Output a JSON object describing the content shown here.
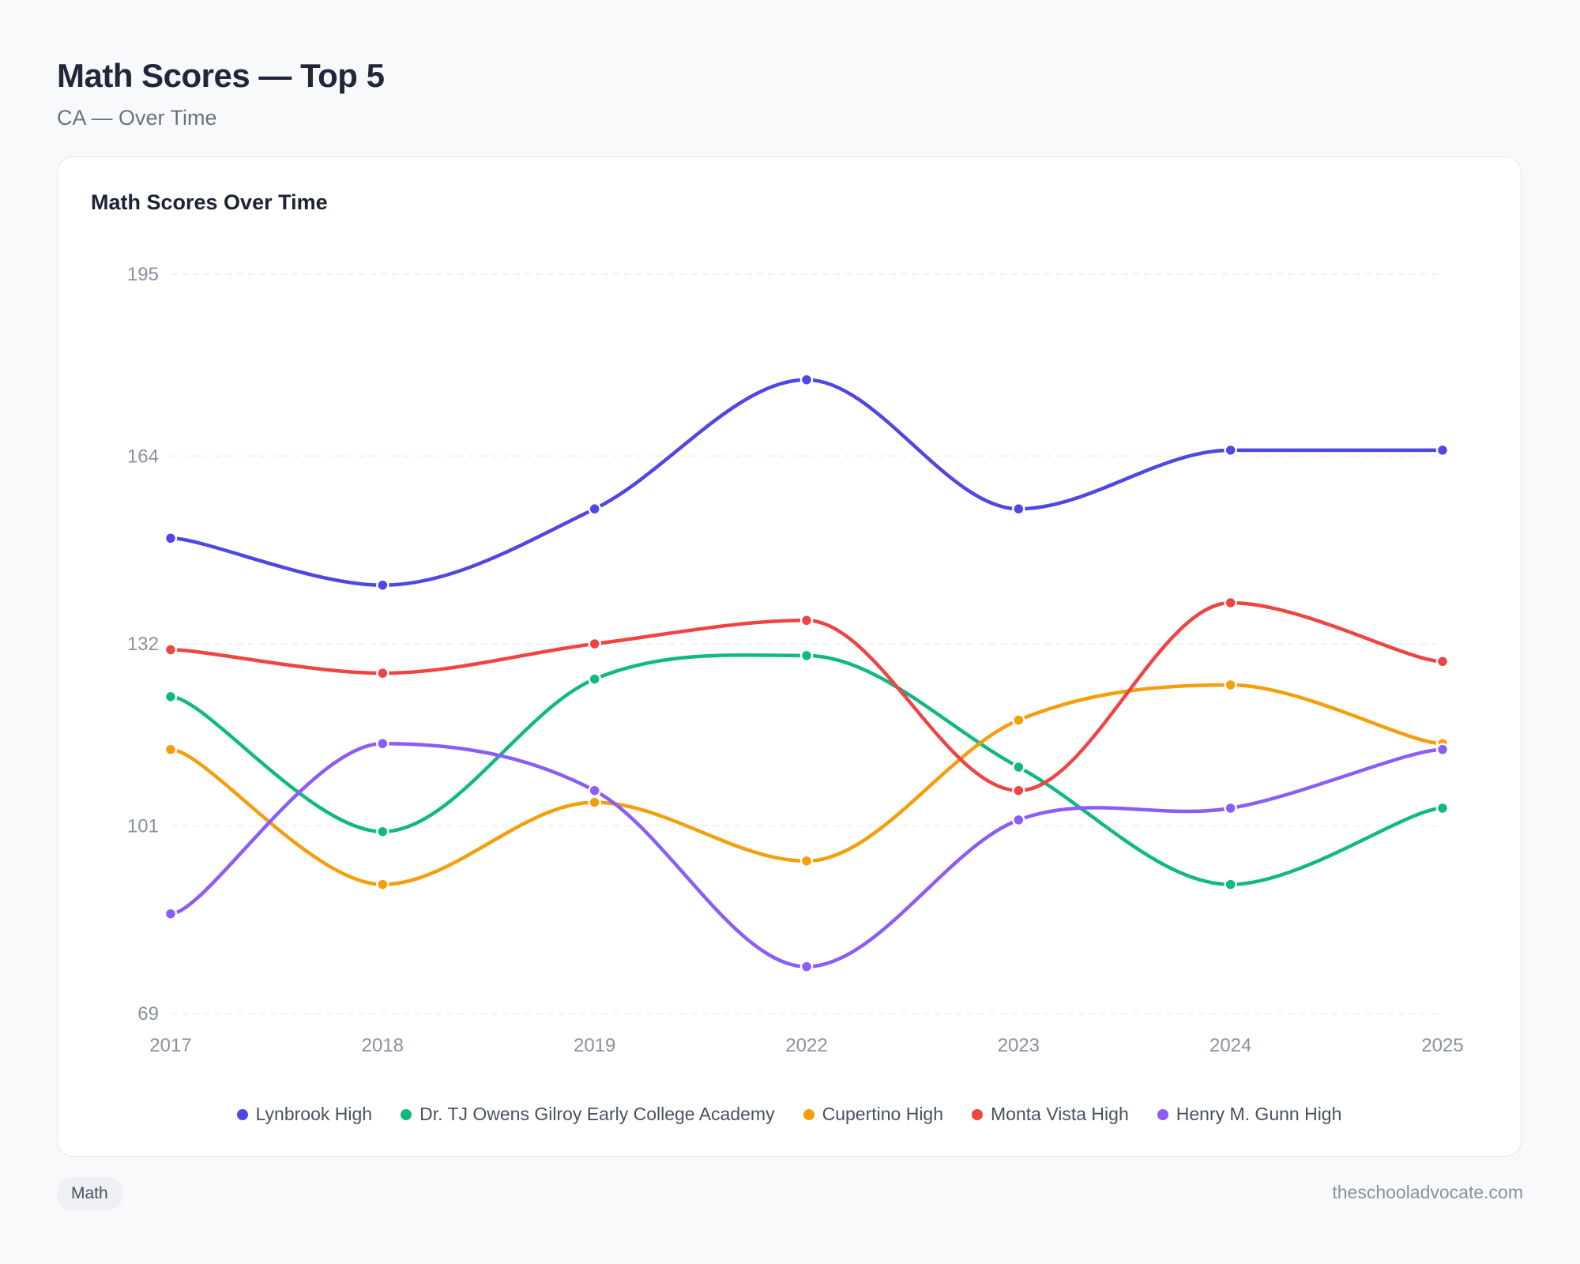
{
  "header": {
    "title": "Math Scores — Top 5",
    "subtitle": "CA — Over Time"
  },
  "card": {
    "title": "Math Scores Over Time"
  },
  "chart_data": {
    "type": "line",
    "title": "Math Scores Over Time",
    "categories": [
      "2017",
      "2018",
      "2019",
      "2022",
      "2023",
      "2024",
      "2025"
    ],
    "yticks": [
      69,
      101,
      132,
      164,
      195
    ],
    "ylim": [
      69,
      195
    ],
    "grid": true,
    "legend_position": "bottom",
    "series": [
      {
        "name": "Lynbrook High",
        "color": "#4f46e5",
        "values": [
          150,
          142,
          155,
          177,
          155,
          165,
          165
        ]
      },
      {
        "name": "Dr. TJ Owens Gilroy Early College Academy",
        "color": "#10b981",
        "values": [
          123,
          100,
          126,
          130,
          111,
          91,
          104
        ]
      },
      {
        "name": "Cupertino High",
        "color": "#f59e0b",
        "values": [
          114,
          91,
          105,
          95,
          119,
          125,
          115
        ]
      },
      {
        "name": "Monta Vista High",
        "color": "#ef4444",
        "values": [
          131,
          127,
          132,
          136,
          107,
          139,
          129
        ]
      },
      {
        "name": "Henry M. Gunn High",
        "color": "#8b5cf6",
        "values": [
          86,
          115,
          107,
          77,
          102,
          104,
          114
        ]
      }
    ]
  },
  "footer": {
    "tag": "Math",
    "site": "theschooladvocate.com"
  }
}
